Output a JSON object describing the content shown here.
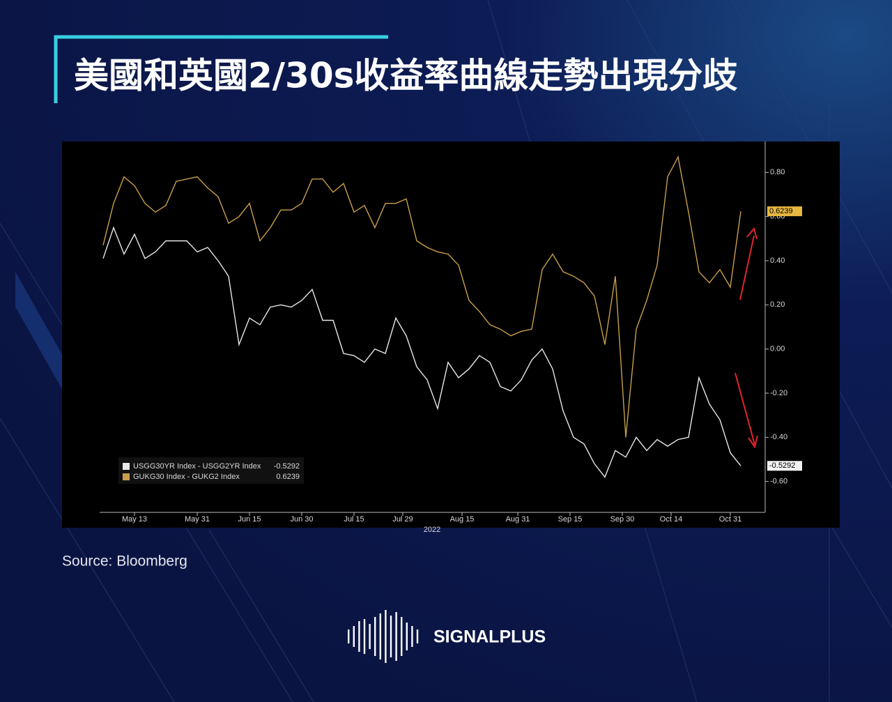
{
  "page_title": "美國和英國2/30s收益率曲線走勢出現分歧",
  "source": "Source:  Bloomberg",
  "brand": "SIGNALPLUS",
  "chart_data": {
    "type": "line",
    "year_label": "2022",
    "x": [
      "2022-05-04",
      "2022-05-07",
      "2022-05-10",
      "2022-05-13",
      "2022-05-16",
      "2022-05-19",
      "2022-05-22",
      "2022-05-25",
      "2022-05-28",
      "2022-05-31",
      "2022-06-03",
      "2022-06-06",
      "2022-06-09",
      "2022-06-12",
      "2022-06-15",
      "2022-06-18",
      "2022-06-21",
      "2022-06-24",
      "2022-06-27",
      "2022-06-30",
      "2022-07-03",
      "2022-07-06",
      "2022-07-09",
      "2022-07-12",
      "2022-07-15",
      "2022-07-18",
      "2022-07-21",
      "2022-07-24",
      "2022-07-27",
      "2022-07-30",
      "2022-08-02",
      "2022-08-05",
      "2022-08-08",
      "2022-08-11",
      "2022-08-14",
      "2022-08-17",
      "2022-08-20",
      "2022-08-23",
      "2022-08-26",
      "2022-08-29",
      "2022-09-01",
      "2022-09-04",
      "2022-09-07",
      "2022-09-10",
      "2022-09-13",
      "2022-09-16",
      "2022-09-19",
      "2022-09-22",
      "2022-09-25",
      "2022-09-28",
      "2022-10-01",
      "2022-10-04",
      "2022-10-07",
      "2022-10-10",
      "2022-10-13",
      "2022-10-16",
      "2022-10-19",
      "2022-10-22",
      "2022-10-25",
      "2022-10-28",
      "2022-10-31",
      "2022-11-03"
    ],
    "series": [
      {
        "name": "USGG30YR Index - USGG2YR Index",
        "color": "#e8e8e8",
        "values": [
          0.41,
          0.55,
          0.43,
          0.52,
          0.41,
          0.44,
          0.49,
          0.49,
          0.49,
          0.44,
          0.46,
          0.4,
          0.33,
          0.02,
          0.14,
          0.11,
          0.19,
          0.2,
          0.19,
          0.22,
          0.27,
          0.13,
          0.13,
          -0.02,
          -0.03,
          -0.06,
          0.0,
          -0.02,
          0.14,
          0.06,
          -0.08,
          -0.14,
          -0.27,
          -0.06,
          -0.13,
          -0.09,
          -0.03,
          -0.06,
          -0.17,
          -0.19,
          -0.14,
          -0.05,
          0.0,
          -0.09,
          -0.28,
          -0.4,
          -0.43,
          -0.52,
          -0.58,
          -0.46,
          -0.49,
          -0.4,
          -0.46,
          -0.41,
          -0.44,
          -0.41,
          -0.4,
          -0.13,
          -0.25,
          -0.32,
          -0.47,
          -0.5292
        ]
      },
      {
        "name": "GUKG30 Index - GUKG2 Index",
        "color": "#c9a04a",
        "values": [
          0.47,
          0.66,
          0.78,
          0.74,
          0.66,
          0.62,
          0.65,
          0.76,
          0.77,
          0.78,
          0.73,
          0.69,
          0.57,
          0.6,
          0.66,
          0.49,
          0.55,
          0.63,
          0.63,
          0.66,
          0.77,
          0.77,
          0.71,
          0.75,
          0.62,
          0.65,
          0.55,
          0.66,
          0.66,
          0.68,
          0.49,
          0.46,
          0.44,
          0.43,
          0.38,
          0.22,
          0.17,
          0.11,
          0.09,
          0.06,
          0.08,
          0.09,
          0.36,
          0.43,
          0.35,
          0.33,
          0.3,
          0.24,
          0.02,
          0.33,
          -0.4,
          0.09,
          0.22,
          0.38,
          0.78,
          0.87,
          0.62,
          0.35,
          0.3,
          0.36,
          0.28,
          0.6239
        ]
      }
    ],
    "xlim": [
      "2022-05-03",
      "2022-11-09"
    ],
    "xticks": [
      {
        "value": "2022-05-13",
        "label": "May 13"
      },
      {
        "value": "2022-05-31",
        "label": "May 31"
      },
      {
        "value": "2022-06-15",
        "label": "Jun 15"
      },
      {
        "value": "2022-06-30",
        "label": "Jun 30"
      },
      {
        "value": "2022-07-15",
        "label": "Jul 15"
      },
      {
        "value": "2022-07-29",
        "label": "Jul 29"
      },
      {
        "value": "2022-08-15",
        "label": "Aug 15"
      },
      {
        "value": "2022-08-31",
        "label": "Aug 31"
      },
      {
        "value": "2022-09-15",
        "label": "Sep 15"
      },
      {
        "value": "2022-09-30",
        "label": "Sep 30"
      },
      {
        "value": "2022-10-14",
        "label": "Oct 14"
      },
      {
        "value": "2022-10-31",
        "label": "Oct 31"
      }
    ],
    "ylim": [
      -0.74,
      0.94
    ],
    "yticks": [
      {
        "value": 0.8,
        "label": "0.80"
      },
      {
        "value": 0.6,
        "label": "0.60"
      },
      {
        "value": 0.4,
        "label": "0.40"
      },
      {
        "value": 0.2,
        "label": "0.20"
      },
      {
        "value": 0,
        "label": "0.00"
      },
      {
        "value": -0.2,
        "label": "-0.20"
      },
      {
        "value": -0.4,
        "label": "-0.40"
      },
      {
        "value": -0.6,
        "label": "-0.60"
      }
    ],
    "legend": "lower left"
  }
}
